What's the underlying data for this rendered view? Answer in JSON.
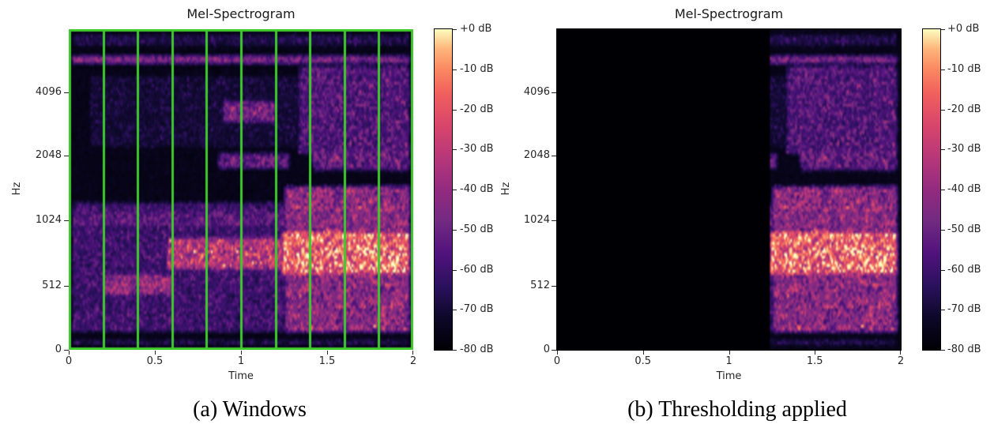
{
  "figure": {
    "panels": [
      {
        "title": "Mel-Spectrogram",
        "xlabel": "Time",
        "ylabel": "Hz",
        "x_tick_labels": [
          "0",
          "0.5",
          "1",
          "1.5",
          "2"
        ],
        "x_tick_pos": [
          0,
          0.25,
          0.5,
          0.75,
          1
        ],
        "y_tick_labels": [
          "4096",
          "2048",
          "1024",
          "512",
          "0"
        ],
        "y_tick_pos": [
          0.197,
          0.394,
          0.596,
          0.8,
          1
        ],
        "colorbar_labels": [
          "+0 dB",
          "-10 dB",
          "-20 dB",
          "-30 dB",
          "-40 dB",
          "-50 dB",
          "-60 dB",
          "-70 dB",
          "-80 dB"
        ],
        "caption": "(a) Windows"
      },
      {
        "title": "Mel-Spectrogram",
        "xlabel": "Time",
        "ylabel": "Hz",
        "x_tick_labels": [
          "0",
          "0.5",
          "1",
          "1.5",
          "2"
        ],
        "x_tick_pos": [
          0,
          0.25,
          0.5,
          0.75,
          1
        ],
        "y_tick_labels": [
          "4096",
          "2048",
          "1024",
          "512",
          "0"
        ],
        "y_tick_pos": [
          0.197,
          0.394,
          0.596,
          0.8,
          1
        ],
        "colorbar_labels": [
          "+0 dB",
          "-10 dB",
          "-20 dB",
          "-30 dB",
          "-40 dB",
          "-50 dB",
          "-60 dB",
          "-70 dB",
          "-80 dB"
        ],
        "caption": "(b) Thresholding applied"
      }
    ]
  },
  "chart_data": [
    {
      "type": "heatmap",
      "subtype": "mel-spectrogram",
      "title": "Mel-Spectrogram",
      "xlabel": "Time",
      "ylabel": "Hz",
      "x_range_s": [
        0,
        2
      ],
      "x_ticks_s": [
        0,
        0.5,
        1,
        1.5,
        2
      ],
      "y_ticks_hz": [
        0,
        512,
        1024,
        2048,
        4096
      ],
      "y_scale": "mel",
      "value_range_db": [
        -80,
        0
      ],
      "colorbar_tick_labels": [
        "+0 dB",
        "-10 dB",
        "-20 dB",
        "-30 dB",
        "-40 dB",
        "-50 dB",
        "-60 dB",
        "-70 dB",
        "-80 dB"
      ],
      "colormap": "magma",
      "colormap_stops": [
        [
          0.0,
          "#000004"
        ],
        [
          0.1,
          "#0d0829"
        ],
        [
          0.2,
          "#2b115e"
        ],
        [
          0.3,
          "#50127c"
        ],
        [
          0.4,
          "#722a81"
        ],
        [
          0.5,
          "#932b80"
        ],
        [
          0.6,
          "#b73779"
        ],
        [
          0.7,
          "#d8456c"
        ],
        [
          0.8,
          "#f1605d"
        ],
        [
          0.875,
          "#fb8861"
        ],
        [
          0.94,
          "#feb67c"
        ],
        [
          1.0,
          "#fcfdbf"
        ]
      ],
      "windows": {
        "count": 10,
        "width_s": 0.2,
        "boundaries_s": [
          0,
          0.2,
          0.4,
          0.6,
          0.8,
          1.0,
          1.2,
          1.4,
          1.6,
          1.8,
          2.0
        ],
        "color": "#3fc92c",
        "description": "green rectangular window boundaries overlaid on the spectrogram"
      },
      "features": [
        {
          "name": "harmonic-streak",
          "hz": [
            5200,
            6500
          ],
          "t": [
            0,
            2
          ],
          "v": [
            0.885,
            0.932
          ],
          "i": 0.4,
          "sp": 1.0
        },
        {
          "name": "top-speckle",
          "hz": [
            6800,
            8192
          ],
          "t": [
            0,
            2
          ],
          "v": [
            0.94,
            1.0
          ],
          "i": 0.27,
          "sp": 3.2
        },
        {
          "name": "upper-speckle",
          "hz": [
            2200,
            5000
          ],
          "t": [
            0.1,
            2
          ],
          "v": [
            0.62,
            0.87
          ],
          "i": 0.22,
          "sp": 3.4
        },
        {
          "name": "blob-3kHz",
          "hz": [
            2900,
            3800
          ],
          "t": [
            0.88,
            1.22
          ],
          "v": [
            0.7,
            0.79
          ],
          "i": 0.46,
          "sp": 1.4
        },
        {
          "name": "upper-right-streaks",
          "hz": [
            2300,
            6000
          ],
          "t": [
            1.32,
            2
          ],
          "v": [
            0.6,
            0.9
          ],
          "i": 0.41,
          "sp": 2.1
        },
        {
          "name": "band-2kHz",
          "hz": [
            1900,
            2300
          ],
          "t": [
            0.85,
            1.3
          ],
          "v": [
            0.555,
            0.625
          ],
          "i": 0.38,
          "sp": 1.5
        },
        {
          "name": "band-2kHz-late",
          "hz": [
            1800,
            2400
          ],
          "t": [
            1.4,
            2
          ],
          "v": [
            0.55,
            0.64
          ],
          "i": 0.42,
          "sp": 1.8
        },
        {
          "name": "low-speckle",
          "hz": [
            100,
            1200
          ],
          "t": [
            0,
            2
          ],
          "v": [
            0.04,
            0.47
          ],
          "i": 0.3,
          "sp": 1.6
        },
        {
          "name": "band-1kHz",
          "hz": [
            900,
            1200
          ],
          "t": [
            0,
            2
          ],
          "v": [
            0.37,
            0.45
          ],
          "i": 0.33,
          "sp": 1.3
        },
        {
          "name": "early-orange",
          "hz": [
            350,
            500
          ],
          "t": [
            0.18,
            0.62
          ],
          "v": [
            0.155,
            0.245
          ],
          "i": 0.5,
          "sp": 1.2
        },
        {
          "name": "voice-band",
          "hz": [
            600,
            1000
          ],
          "t": [
            0.55,
            1.3
          ],
          "v": [
            0.235,
            0.36
          ],
          "i": 0.6,
          "sp": 1.1
        },
        {
          "name": "voice-band-strong",
          "hz": [
            550,
            1100
          ],
          "t": [
            1.22,
            2
          ],
          "v": [
            0.22,
            0.38
          ],
          "i": 0.78,
          "sp": 1.0
        },
        {
          "name": "right-broad-activity",
          "hz": [
            100,
            1400
          ],
          "t": [
            1.24,
            2
          ],
          "v": [
            0.04,
            0.52
          ],
          "i": 0.52,
          "sp": 1.4
        },
        {
          "name": "bottom-speckle",
          "hz": [
            0,
            100
          ],
          "t": [
            0,
            2
          ],
          "v": [
            0.0,
            0.04
          ],
          "i": 0.24,
          "sp": 2.0
        }
      ]
    },
    {
      "type": "heatmap",
      "subtype": "mel-spectrogram",
      "title": "Mel-Spectrogram",
      "xlabel": "Time",
      "ylabel": "Hz",
      "x_range_s": [
        0,
        2
      ],
      "x_ticks_s": [
        0,
        0.5,
        1,
        1.5,
        2
      ],
      "y_ticks_hz": [
        0,
        512,
        1024,
        2048,
        4096
      ],
      "y_scale": "mel",
      "value_range_db": [
        -80,
        0
      ],
      "colorbar_tick_labels": [
        "+0 dB",
        "-10 dB",
        "-20 dB",
        "-30 dB",
        "-40 dB",
        "-50 dB",
        "-60 dB",
        "-70 dB",
        "-80 dB"
      ],
      "colormap": "magma",
      "content": "same spectral content as panel (a)",
      "thresholding": {
        "masked_before_s": 1.24,
        "description": "all frames before ~1.24 s are suppressed to -80 dB (black); content after 1.24 s kept"
      }
    }
  ]
}
